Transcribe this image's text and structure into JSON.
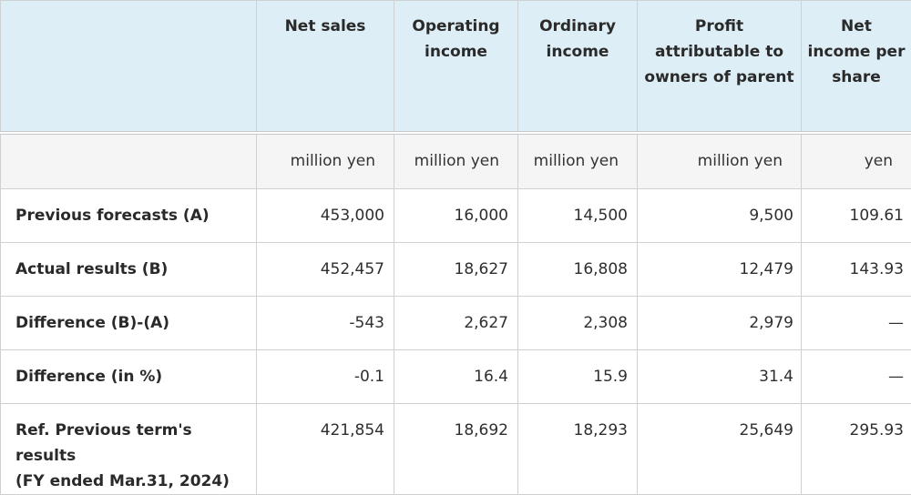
{
  "headers": [
    "",
    "Net sales",
    "Operating income",
    "Ordinary income",
    "Profit attributable to owners of parent",
    "Net income per share"
  ],
  "units": [
    "",
    "million yen",
    "million yen",
    "million yen",
    "million yen",
    "yen"
  ],
  "rows": [
    {
      "label": "Previous forecasts (A)",
      "values": [
        "453,000",
        "16,000",
        "14,500",
        "9,500",
        "109.61"
      ]
    },
    {
      "label": "Actual results (B)",
      "values": [
        "452,457",
        "18,627",
        "16,808",
        "12,479",
        "143.93"
      ]
    },
    {
      "label": "Difference (B)-(A)",
      "values": [
        "-543",
        "2,627",
        "2,308",
        "2,979",
        "—"
      ]
    },
    {
      "label": "Difference (in %)",
      "values": [
        "-0.1",
        "16.4",
        "15.9",
        "31.4",
        "—"
      ]
    },
    {
      "label_line1": "Ref. Previous term's results",
      "label_line2": "(FY ended Mar.31, 2024)",
      "values": [
        "421,854",
        "18,692",
        "18,293",
        "25,649",
        "295.93"
      ]
    }
  ]
}
